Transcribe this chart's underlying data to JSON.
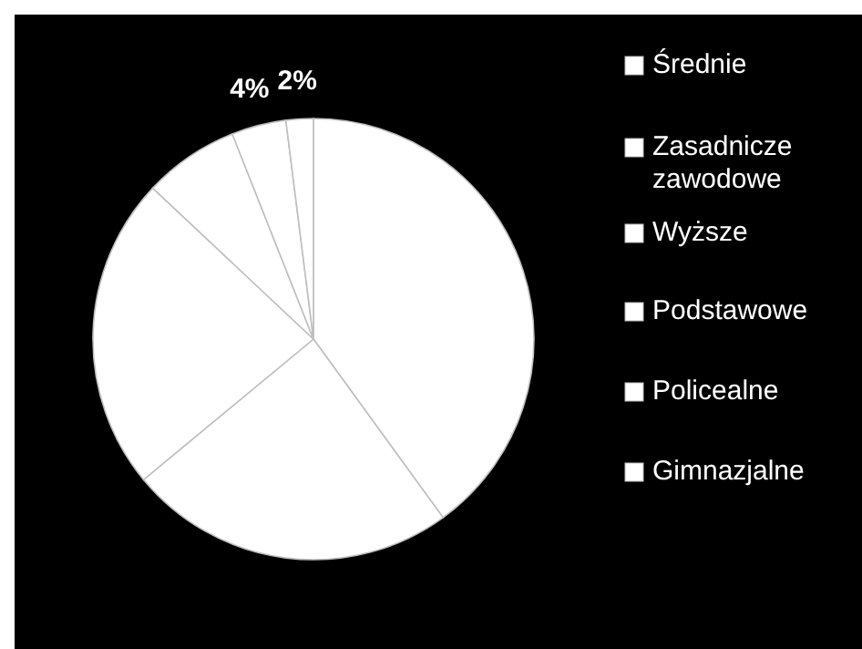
{
  "chart_data": {
    "type": "pie",
    "categories": [
      "Średnie",
      "Zasadnicze zawodowe",
      "Wyższe",
      "Podstawowe",
      "Policealne",
      "Gimnazjalne"
    ],
    "values": [
      40,
      24,
      23,
      7,
      4,
      2
    ],
    "colors": [
      "#ffffff",
      "#ffffff",
      "#ffffff",
      "#ffffff",
      "#ffffff",
      "#ffffff"
    ],
    "value_labels": [
      null,
      null,
      null,
      null,
      "4%",
      "2%"
    ],
    "legend": "right"
  }
}
